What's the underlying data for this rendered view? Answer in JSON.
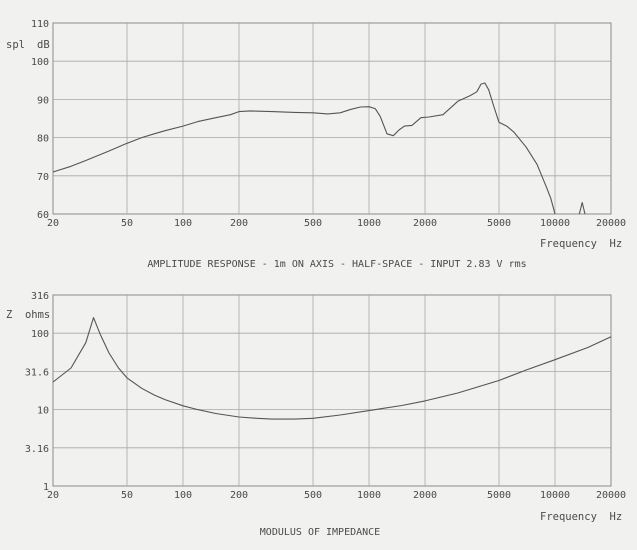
{
  "chart_data": [
    {
      "type": "line",
      "title": "AMPLITUDE RESPONSE - 1m ON AXIS - HALF-SPACE - INPUT 2.83 V rms",
      "ylabel_left": "spl",
      "ylabel_right": "dB",
      "xlabel": "Frequency  Hz",
      "x_scale": "log",
      "xlim": [
        20,
        20000
      ],
      "ylim": [
        60,
        110
      ],
      "x_ticks": [
        20,
        50,
        100,
        200,
        500,
        1000,
        2000,
        5000,
        10000,
        20000
      ],
      "x_tick_labels": [
        "20",
        "50",
        "100",
        "200",
        "500",
        "1000",
        "2000",
        "5000",
        "10000",
        "20000"
      ],
      "y_ticks": [
        60,
        70,
        80,
        90,
        100,
        110
      ],
      "y_tick_labels": [
        "60",
        "70",
        "80",
        "90",
        "100",
        "110"
      ],
      "grid": true,
      "series": [
        {
          "x": [
            20,
            25,
            30,
            40,
            50,
            60,
            70,
            80,
            100,
            120,
            150,
            180,
            200,
            230,
            300,
            400,
            500,
            600,
            700,
            800,
            900,
            1000,
            1080,
            1150,
            1250,
            1350,
            1450,
            1550,
            1700,
            1900,
            2100,
            2500,
            3000,
            3500,
            3800,
            4000,
            4200,
            4400,
            4700,
            5000,
            5500,
            6000,
            7000,
            8000,
            9000,
            9500,
            10000
          ],
          "y": [
            71,
            72.5,
            74,
            76.5,
            78.5,
            80,
            81,
            81.8,
            83,
            84.2,
            85.2,
            86,
            86.8,
            87,
            86.8,
            86.6,
            86.5,
            86.2,
            86.5,
            87.4,
            88,
            88.1,
            87.6,
            85.5,
            81,
            80.5,
            82,
            83,
            83.2,
            85.2,
            85.4,
            86,
            89.5,
            91,
            92,
            94,
            94.3,
            92.5,
            88,
            84,
            83,
            81.5,
            77.5,
            73,
            67,
            64,
            60
          ]
        },
        {
          "x": [
            13500,
            14000,
            14500
          ],
          "y": [
            60,
            63,
            60
          ]
        }
      ]
    },
    {
      "type": "line",
      "title": "MODULUS OF IMPEDANCE",
      "ylabel": "Z  ohms",
      "xlabel": "Frequency  Hz",
      "x_scale": "log",
      "y_scale": "log",
      "xlim": [
        20,
        20000
      ],
      "ylim": [
        1,
        316
      ],
      "x_ticks": [
        20,
        50,
        100,
        200,
        500,
        1000,
        2000,
        5000,
        10000,
        20000
      ],
      "x_tick_labels": [
        "20",
        "50",
        "100",
        "200",
        "500",
        "1000",
        "2000",
        "5000",
        "10000",
        "20000"
      ],
      "y_ticks": [
        1,
        3.16,
        10,
        31.6,
        100,
        316
      ],
      "y_tick_labels": [
        "1",
        "3.16",
        "10",
        "31.6",
        "100",
        "316"
      ],
      "grid": true,
      "series": [
        {
          "x": [
            20,
            25,
            30,
            33,
            36,
            40,
            45,
            50,
            60,
            70,
            80,
            100,
            120,
            150,
            200,
            250,
            300,
            400,
            500,
            700,
            1000,
            1500,
            2000,
            3000,
            5000,
            7000,
            10000,
            15000,
            20000
          ],
          "y": [
            23,
            35,
            75,
            160,
            95,
            55,
            35,
            26,
            19,
            15.5,
            13.5,
            11.2,
            10,
            8.9,
            8,
            7.7,
            7.5,
            7.5,
            7.7,
            8.5,
            9.7,
            11.3,
            13,
            16.5,
            24,
            33,
            45,
            65,
            90
          ]
        }
      ]
    }
  ]
}
